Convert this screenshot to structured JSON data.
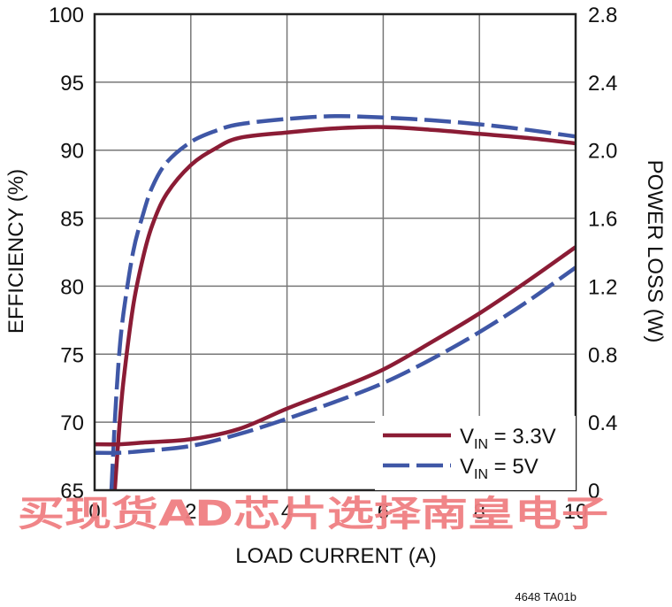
{
  "chart_data": {
    "type": "line",
    "xlabel": "LOAD CURRENT (A)",
    "ylabel": "EFFICIENCY (%)",
    "y2label": "POWER LOSS (W)",
    "xlim": [
      0,
      10
    ],
    "ylim": [
      65,
      100
    ],
    "y2lim": [
      0,
      2.8
    ],
    "x_ticks": [
      "0",
      "2",
      "4",
      "6",
      "8",
      "10"
    ],
    "y_ticks": [
      "65",
      "70",
      "75",
      "80",
      "85",
      "90",
      "95",
      "100"
    ],
    "y2_ticks": [
      "0",
      "0.4",
      "0.8",
      "1.2",
      "1.6",
      "2.0",
      "2.4",
      "2.8"
    ],
    "grid": true,
    "legend_position": "bottom-right",
    "legend": [
      {
        "base": "V",
        "sub": "IN",
        "rest": " = 3.3V",
        "color": "#8b1c35",
        "dash": "solid"
      },
      {
        "base": "V",
        "sub": "IN",
        "rest": " = 5V",
        "color": "#3f57a6",
        "dash": "dashed"
      }
    ],
    "series": [
      {
        "kind": "efficiency",
        "axis": "left",
        "color": "#8b1c35",
        "dash": "solid",
        "x": [
          0.42,
          0.5,
          0.6,
          0.8,
          1.0,
          1.2,
          1.5,
          2.0,
          2.5,
          3.0,
          4.0,
          5.0,
          6.0,
          7.0,
          8.0,
          9.0,
          10.0
        ],
        "y": [
          65.0,
          69.0,
          73.0,
          78.5,
          82.0,
          84.5,
          86.8,
          88.9,
          90.1,
          90.9,
          91.3,
          91.6,
          91.7,
          91.5,
          91.2,
          90.9,
          90.5
        ]
      },
      {
        "kind": "efficiency",
        "axis": "left",
        "color": "#3f57a6",
        "dash": "dashed",
        "x": [
          0.35,
          0.42,
          0.5,
          0.6,
          0.8,
          1.0,
          1.2,
          1.5,
          2.0,
          2.5,
          3.0,
          4.0,
          5.0,
          6.0,
          7.0,
          8.0,
          9.0,
          10.0
        ],
        "y": [
          65.0,
          70.0,
          74.5,
          78.0,
          82.5,
          85.2,
          87.3,
          89.1,
          90.6,
          91.4,
          91.9,
          92.3,
          92.5,
          92.4,
          92.2,
          91.9,
          91.5,
          91.0
        ]
      },
      {
        "kind": "power_loss",
        "axis": "right",
        "color": "#8b1c35",
        "dash": "solid",
        "x": [
          0,
          0.5,
          1,
          2,
          3,
          4,
          5,
          6,
          7,
          8,
          9,
          10
        ],
        "y": [
          0.27,
          0.27,
          0.28,
          0.3,
          0.36,
          0.48,
          0.59,
          0.71,
          0.87,
          1.04,
          1.23,
          1.43
        ]
      },
      {
        "kind": "power_loss",
        "axis": "right",
        "color": "#3f57a6",
        "dash": "dashed",
        "x": [
          0,
          0.5,
          1,
          2,
          3,
          4,
          5,
          6,
          7,
          8,
          9,
          10
        ],
        "y": [
          0.22,
          0.22,
          0.23,
          0.26,
          0.33,
          0.42,
          0.52,
          0.63,
          0.77,
          0.93,
          1.11,
          1.31
        ]
      }
    ]
  },
  "figure_id": "4648 TA01b",
  "watermark": "买现货AD芯片选择南皇电子"
}
